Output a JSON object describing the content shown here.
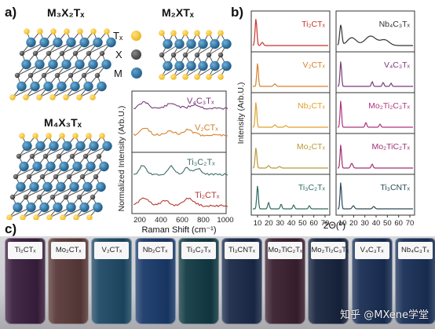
{
  "panel_labels": {
    "a": "a)",
    "b": "b)",
    "c": "c)"
  },
  "structures": {
    "m3x2": "M₃X₂Tₓ",
    "m2x": "M₂XTₓ",
    "m4x3": "M₄X₃Tₓ"
  },
  "atom_legend": {
    "t": "Tₓ",
    "x": "X",
    "m": "M"
  },
  "colors": {
    "m_atom": "#1f5b85",
    "t_atom": "#f1b81f",
    "x_atom": "#333333"
  },
  "raman": {
    "ylabel": "Normalized Intensity (Arb.U.)",
    "xlabel": "Raman Shift (cm⁻¹)",
    "xticks": [
      "200",
      "400",
      "600",
      "800",
      "1000"
    ],
    "series": [
      {
        "name": "V₄C₃Tₓ",
        "color": "#7a3a7a"
      },
      {
        "name": "V₂CTₓ",
        "color": "#d4822a"
      },
      {
        "name": "Ti₃C₂Tₓ",
        "color": "#3f6e66"
      },
      {
        "name": "Ti₂CTₓ",
        "color": "#b23a34"
      }
    ]
  },
  "xrd": {
    "ylabel": "Intensity (Arb.U.)",
    "xlabel": "2Θ(º)",
    "xticks": [
      "10",
      "20",
      "30",
      "40",
      "50",
      "60",
      "70"
    ],
    "left_column": [
      {
        "name": "Ti₂CTₓ",
        "color": "#c8342a"
      },
      {
        "name": "V₂CTₓ",
        "color": "#d6822a"
      },
      {
        "name": "Nb₂CTₓ",
        "color": "#e0a12a"
      },
      {
        "name": "Mo₂CTₓ",
        "color": "#b89a3a"
      },
      {
        "name": "Ti₃C₂Tₓ",
        "color": "#2f6a62"
      }
    ],
    "right_column": [
      {
        "name": "Nb₄C₃Tₓ",
        "color": "#333333"
      },
      {
        "name": "V₄C₃Tₓ",
        "color": "#7a3a7a"
      },
      {
        "name": "Mo₂Ti₂C₃Tₓ",
        "color": "#b0347f"
      },
      {
        "name": "Mo₂TiC₂Tₓ",
        "color": "#a03070"
      },
      {
        "name": "Ti₃CNTₓ",
        "color": "#2a4a5a"
      }
    ]
  },
  "vials": [
    {
      "label": "Ti₂CTₓ",
      "color": "#3a1f3e"
    },
    {
      "label": "Mo₂CTₓ",
      "color": "#5a3a3a"
    },
    {
      "label": "V₂CTₓ",
      "color": "#1f4a66"
    },
    {
      "label": "Nb₂CTₓ",
      "color": "#1a3a6a"
    },
    {
      "label": "Ti₃C₂Tₓ",
      "color": "#123a44"
    },
    {
      "label": "Ti₃CNTₓ",
      "color": "#1a2a4a"
    },
    {
      "label": "Mo₂TiC₂Tₓ",
      "color": "#3a2030"
    },
    {
      "label": "Mo₂Ti₂C₃Tₓ",
      "color": "#17243e"
    },
    {
      "label": "V₄C₃Tₓ",
      "color": "#1a2f55"
    },
    {
      "label": "Nb₄C₃Tₓ",
      "color": "#1a3058"
    }
  ],
  "watermark": "知乎 @MXene学堂"
}
